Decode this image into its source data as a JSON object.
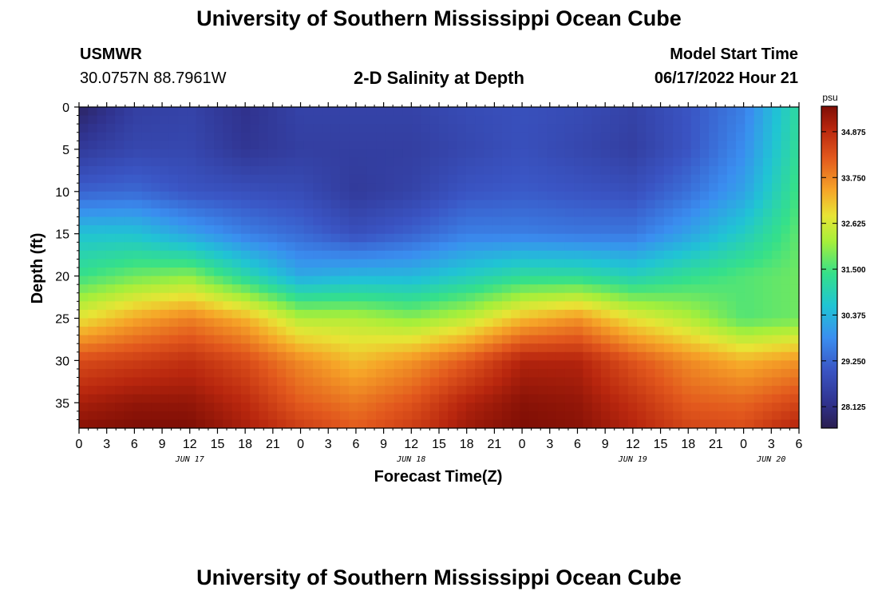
{
  "header": {
    "title": "University of Southern Mississippi Ocean Cube",
    "station_id": "USMWR",
    "coordinates": "30.0757N  88.7961W",
    "plot_title": "2-D Salinity at Depth",
    "model_start_label": "Model Start Time",
    "model_start_value": "06/17/2022 Hour 21"
  },
  "footer": {
    "title": "University of Southern Mississippi Ocean Cube"
  },
  "colorbar": {
    "unit": "psu",
    "ticks": [
      "34.875",
      "33.750",
      "32.625",
      "31.500",
      "30.375",
      "29.250",
      "28.125"
    ],
    "min": 27.6,
    "max": 35.5
  },
  "chart_data": {
    "type": "heatmap",
    "title": "2-D Salinity at Depth",
    "xlabel": "Forecast Time(Z)",
    "ylabel": "Depth (ft)",
    "x_tick_labels": [
      "0",
      "3",
      "6",
      "9",
      "12",
      "15",
      "18",
      "21",
      "0",
      "3",
      "6",
      "9",
      "12",
      "15",
      "18",
      "21",
      "0",
      "3",
      "6",
      "9",
      "12",
      "15",
      "18",
      "21",
      "0",
      "3",
      "6"
    ],
    "x_date_labels": [
      "JUN 17",
      "JUN 18",
      "JUN 19",
      "JUN 20"
    ],
    "x_range_hours": [
      0,
      78
    ],
    "y_tick_labels": [
      "0",
      "5",
      "10",
      "15",
      "20",
      "25",
      "30",
      "35"
    ],
    "y_range_ft": [
      0,
      38
    ],
    "value_unit": "psu",
    "depth_ft": [
      0,
      5,
      10,
      15,
      20,
      25,
      30,
      35,
      38
    ],
    "forecast_hour": [
      0,
      6,
      12,
      18,
      24,
      30,
      36,
      42,
      48,
      54,
      60,
      66,
      72,
      78
    ],
    "salinity": [
      [
        27.8,
        28.5,
        28.6,
        28.2,
        28.6,
        28.6,
        28.6,
        28.8,
        28.9,
        28.8,
        28.6,
        29.0,
        29.6,
        31.2
      ],
      [
        28.4,
        28.7,
        28.7,
        28.3,
        28.5,
        28.5,
        28.5,
        28.7,
        28.9,
        28.7,
        28.5,
        29.0,
        29.8,
        31.3
      ],
      [
        29.2,
        29.3,
        29.0,
        28.9,
        28.8,
        28.4,
        28.6,
        29.0,
        29.1,
        29.0,
        28.9,
        29.4,
        30.1,
        31.5
      ],
      [
        30.6,
        30.6,
        30.1,
        29.6,
        29.3,
        28.9,
        29.2,
        29.6,
        29.6,
        29.5,
        29.5,
        30.1,
        30.8,
        31.7
      ],
      [
        31.4,
        31.8,
        32.0,
        31.1,
        30.2,
        30.4,
        30.4,
        30.8,
        31.2,
        31.2,
        30.9,
        31.3,
        31.6,
        31.8
      ],
      [
        32.8,
        33.4,
        33.8,
        33.3,
        32.3,
        32.3,
        32.0,
        32.4,
        33.2,
        33.6,
        32.8,
        32.3,
        31.6,
        31.8
      ],
      [
        34.4,
        34.6,
        34.8,
        34.4,
        33.7,
        33.2,
        33.6,
        34.2,
        35.0,
        35.0,
        34.3,
        33.7,
        33.3,
        33.6
      ],
      [
        35.1,
        35.3,
        35.3,
        34.9,
        34.2,
        33.9,
        34.3,
        35.0,
        35.4,
        35.3,
        34.8,
        34.2,
        34.1,
        34.5
      ],
      [
        35.4,
        35.5,
        35.5,
        35.1,
        34.6,
        34.2,
        34.6,
        35.2,
        35.5,
        35.4,
        35.0,
        34.5,
        34.4,
        35.0
      ]
    ]
  }
}
